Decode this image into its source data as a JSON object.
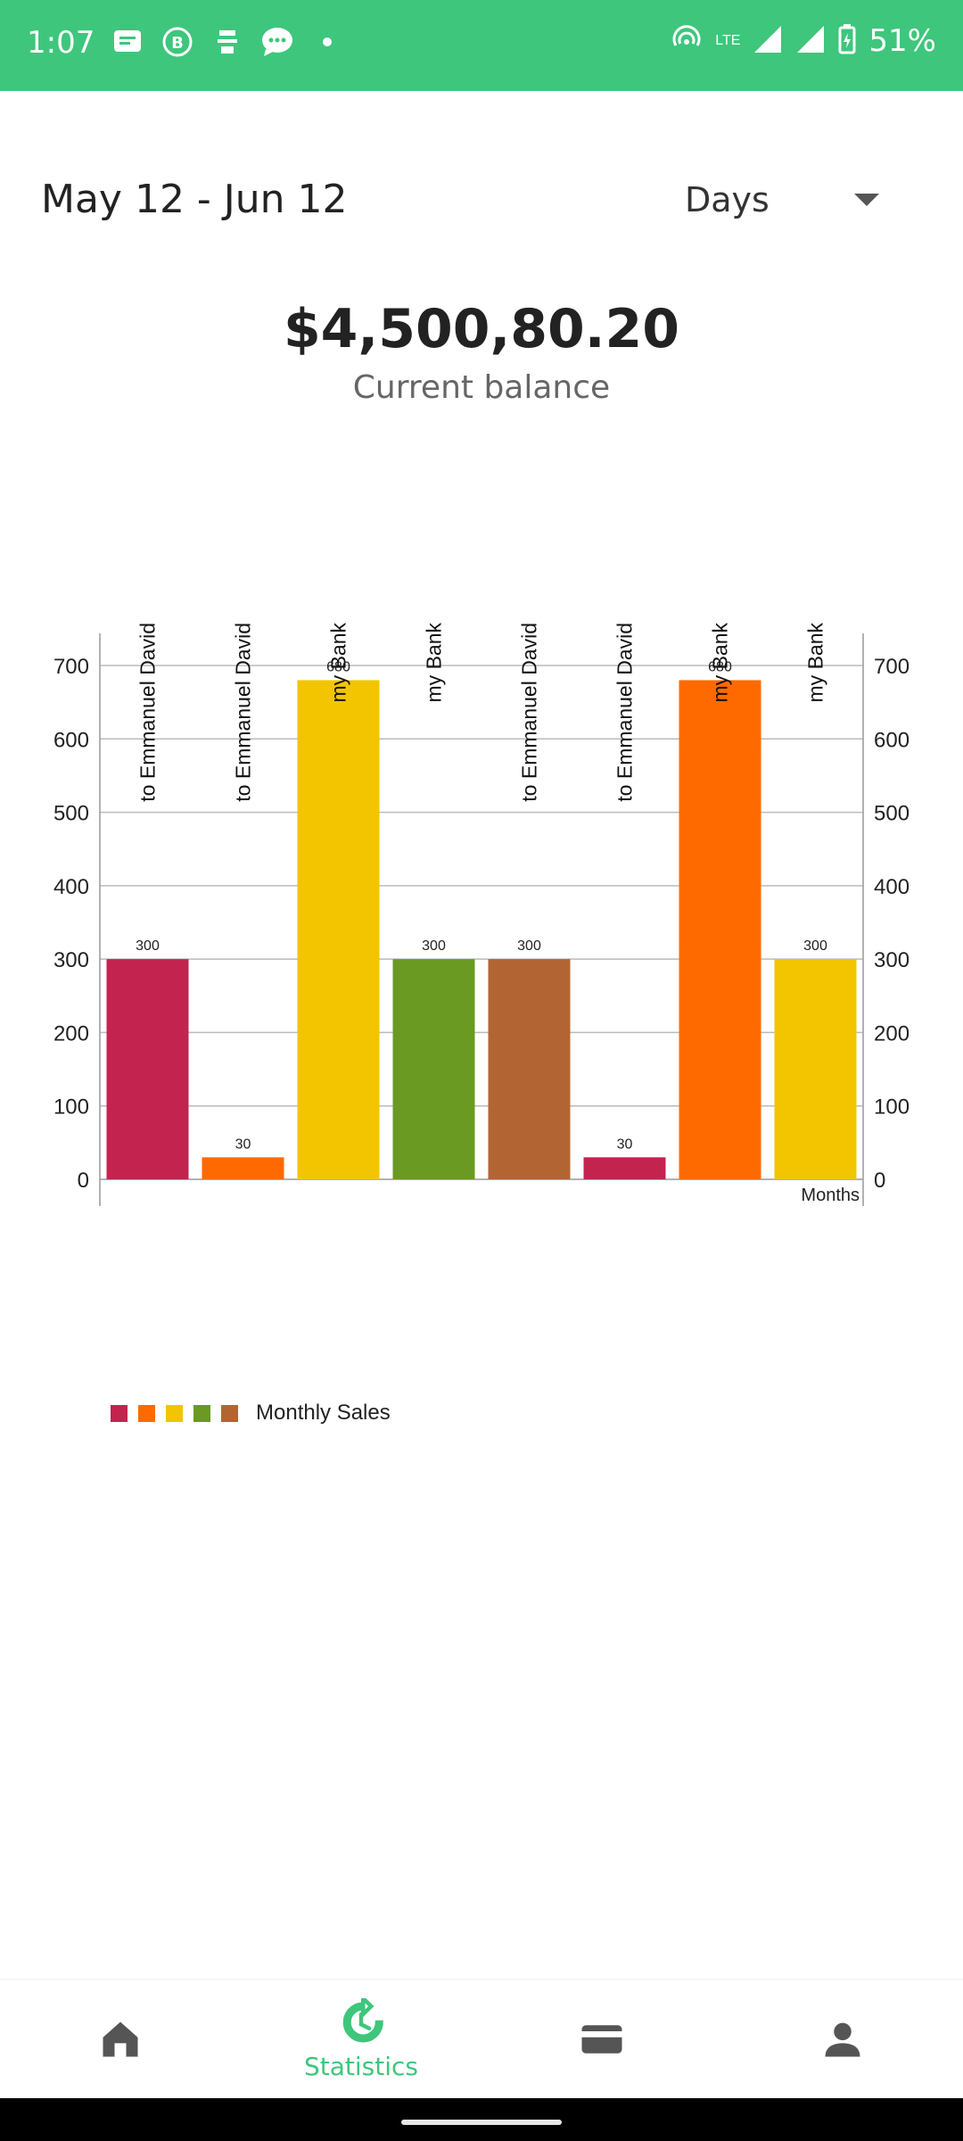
{
  "status_bar": {
    "time": "1:07",
    "battery": "51%",
    "network": "LTE",
    "color": "#3ec67c"
  },
  "header": {
    "date_range": "May 12 - Jun 12",
    "period_selected": "Days"
  },
  "balance": {
    "amount": "$4,500,80.20",
    "caption": "Current balance"
  },
  "chart_data": {
    "type": "bar",
    "categories": [
      "to Emmanuel David",
      "to Emmanuel David",
      "my Bank",
      "my Bank",
      "to Emmanuel David",
      "to Emmanuel David",
      "my Bank",
      "my Bank"
    ],
    "values": [
      300,
      30,
      680,
      300,
      300,
      30,
      680,
      300
    ],
    "data_labels": [
      "300",
      "30",
      "680",
      "300",
      "300",
      "30",
      "680",
      "300"
    ],
    "colors": [
      "#c2244f",
      "#ff6a00",
      "#f2c500",
      "#6a9a21",
      "#b26533",
      "#c2244f",
      "#ff6a00",
      "#f2c500"
    ],
    "xlabel": "Months",
    "ylabel": "",
    "ylim": [
      0,
      700
    ],
    "yticks": [
      "0",
      "100",
      "200",
      "300",
      "400",
      "500",
      "600",
      "700"
    ],
    "grid": true,
    "legend": {
      "placement": "bottom-left",
      "label": "Monthly Sales",
      "swatches": [
        "#c2244f",
        "#ff6a00",
        "#f2c500",
        "#6a9a21",
        "#b26533"
      ]
    }
  },
  "bottom_nav": {
    "items": [
      {
        "icon": "home-icon",
        "label": ""
      },
      {
        "icon": "history-icon",
        "label": "Statistics",
        "active": true
      },
      {
        "icon": "credit-card-icon",
        "label": ""
      },
      {
        "icon": "person-icon",
        "label": ""
      }
    ],
    "active_color": "#3ec67c",
    "icon_color": "#555555"
  }
}
